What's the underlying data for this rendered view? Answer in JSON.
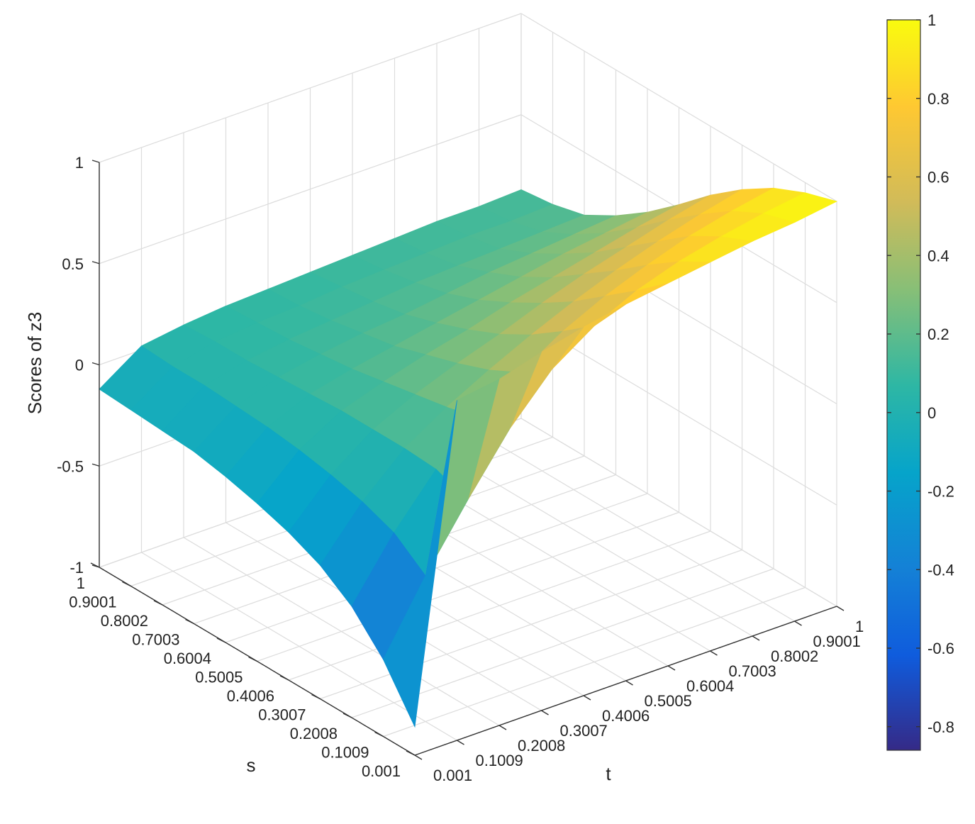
{
  "chart_data": {
    "type": "surface",
    "zlabel": "Scores of z3",
    "xlabel": "t",
    "ylabel": "s",
    "x_ticks": [
      "0.001",
      "0.1009",
      "0.2008",
      "0.3007",
      "0.4006",
      "0.5005",
      "0.6004",
      "0.7003",
      "0.8002",
      "0.9001",
      "1"
    ],
    "y_ticks": [
      "0.001",
      "0.1009",
      "0.2008",
      "0.3007",
      "0.4006",
      "0.5005",
      "0.6004",
      "0.7003",
      "0.8002",
      "0.9001",
      "1"
    ],
    "z_ticks": [
      "-1",
      "-0.5",
      "0",
      "0.5",
      "1"
    ],
    "zlim": [
      -1,
      1
    ],
    "grid": true,
    "colormap": "parula",
    "colorbar": {
      "ticks": [
        "-0.8",
        "-0.6",
        "-0.4",
        "-0.2",
        "0",
        "0.2",
        "0.4",
        "0.6",
        "0.8",
        "1"
      ],
      "range": [
        -0.86,
        1
      ]
    },
    "surface": {
      "t": [
        0.001,
        0.1009,
        0.2008,
        0.3007,
        0.4006,
        0.5005,
        0.6004,
        0.7003,
        0.8002,
        0.9001,
        1
      ],
      "s": [
        0.001,
        0.1009,
        0.2008,
        0.3007,
        0.4006,
        0.5005,
        0.6004,
        0.7003,
        0.8002,
        0.9001,
        1
      ],
      "z_rows_by_s": [
        [
          -0.86,
          0.68,
          0.71,
          0.77,
          0.82,
          0.86,
          0.89,
          0.92,
          0.95,
          0.97,
          1.0
        ],
        [
          -0.62,
          -0.28,
          0.02,
          0.3,
          0.52,
          0.66,
          0.76,
          0.83,
          0.88,
          0.92,
          0.95
        ],
        [
          -0.45,
          -0.16,
          0.08,
          0.26,
          0.41,
          0.54,
          0.64,
          0.72,
          0.79,
          0.84,
          0.88
        ],
        [
          -0.34,
          -0.1,
          0.09,
          0.22,
          0.33,
          0.43,
          0.52,
          0.6,
          0.67,
          0.73,
          0.78
        ],
        [
          -0.27,
          -0.06,
          0.09,
          0.19,
          0.27,
          0.34,
          0.42,
          0.49,
          0.55,
          0.61,
          0.66
        ],
        [
          -0.22,
          -0.03,
          0.09,
          0.16,
          0.22,
          0.27,
          0.33,
          0.38,
          0.43,
          0.48,
          0.52
        ],
        [
          -0.18,
          -0.01,
          0.08,
          0.13,
          0.17,
          0.21,
          0.25,
          0.29,
          0.33,
          0.36,
          0.39
        ],
        [
          -0.15,
          0.0,
          0.07,
          0.11,
          0.14,
          0.16,
          0.19,
          0.22,
          0.24,
          0.26,
          0.28
        ],
        [
          -0.14,
          0.01,
          0.06,
          0.09,
          0.11,
          0.13,
          0.15,
          0.16,
          0.17,
          0.18,
          0.19
        ],
        [
          -0.13,
          0.01,
          0.06,
          0.08,
          0.09,
          0.11,
          0.12,
          0.13,
          0.14,
          0.14,
          0.15
        ],
        [
          -0.12,
          0.02,
          0.05,
          0.07,
          0.08,
          0.09,
          0.1,
          0.11,
          0.12,
          0.12,
          0.13
        ]
      ]
    }
  }
}
